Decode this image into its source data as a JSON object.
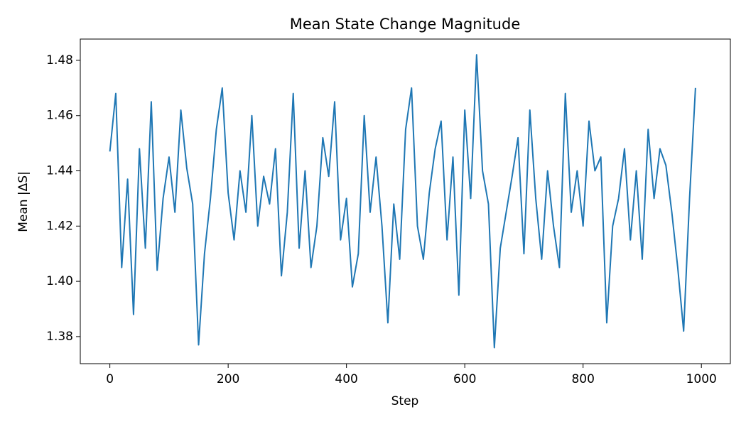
{
  "chart_data": {
    "type": "line",
    "title": "Mean State Change Magnitude",
    "x_label": "Step",
    "y_label": "Mean |ΔS|",
    "x": [
      0,
      10,
      20,
      30,
      40,
      50,
      60,
      70,
      80,
      90,
      100,
      110,
      120,
      130,
      140,
      150,
      160,
      170,
      180,
      190,
      200,
      210,
      220,
      230,
      240,
      250,
      260,
      270,
      280,
      290,
      300,
      310,
      320,
      330,
      340,
      350,
      360,
      370,
      380,
      390,
      400,
      410,
      420,
      430,
      440,
      450,
      460,
      470,
      480,
      490,
      500,
      510,
      520,
      530,
      540,
      550,
      560,
      570,
      580,
      590,
      600,
      610,
      620,
      630,
      640,
      650,
      660,
      670,
      680,
      690,
      700,
      710,
      720,
      730,
      740,
      750,
      760,
      770,
      780,
      790,
      800,
      810,
      820,
      830,
      840,
      850,
      860,
      870,
      880,
      890,
      900,
      910,
      920,
      930,
      940,
      950,
      960,
      970,
      980,
      990
    ],
    "series": [
      {
        "name": "Mean |ΔS|",
        "color": "#1f77b4",
        "values": [
          1.447,
          1.468,
          1.405,
          1.437,
          1.388,
          1.448,
          1.412,
          1.465,
          1.404,
          1.43,
          1.445,
          1.425,
          1.462,
          1.441,
          1.428,
          1.377,
          1.41,
          1.43,
          1.455,
          1.47,
          1.432,
          1.415,
          1.44,
          1.425,
          1.46,
          1.42,
          1.438,
          1.428,
          1.448,
          1.402,
          1.425,
          1.468,
          1.412,
          1.44,
          1.405,
          1.42,
          1.452,
          1.438,
          1.465,
          1.415,
          1.43,
          1.398,
          1.41,
          1.46,
          1.425,
          1.445,
          1.42,
          1.385,
          1.428,
          1.408,
          1.455,
          1.47,
          1.42,
          1.408,
          1.432,
          1.448,
          1.458,
          1.415,
          1.445,
          1.395,
          1.462,
          1.43,
          1.482,
          1.44,
          1.428,
          1.376,
          1.412,
          1.425,
          1.438,
          1.452,
          1.41,
          1.462,
          1.43,
          1.408,
          1.44,
          1.42,
          1.405,
          1.468,
          1.425,
          1.44,
          1.42,
          1.458,
          1.44,
          1.445,
          1.385,
          1.42,
          1.43,
          1.448,
          1.415,
          1.44,
          1.408,
          1.455,
          1.43,
          1.448,
          1.442,
          1.425,
          1.405,
          1.382,
          1.43,
          1.47
        ]
      }
    ],
    "xlim": [
      -50,
      1049
    ],
    "ylim": [
      1.3702,
      1.4877
    ],
    "xticks": [
      0,
      200,
      400,
      600,
      800,
      1000
    ],
    "yticks": [
      1.38,
      {
        "value": 1.4,
        "label": "1.40"
      },
      1.42,
      1.44,
      1.46,
      1.48
    ]
  }
}
